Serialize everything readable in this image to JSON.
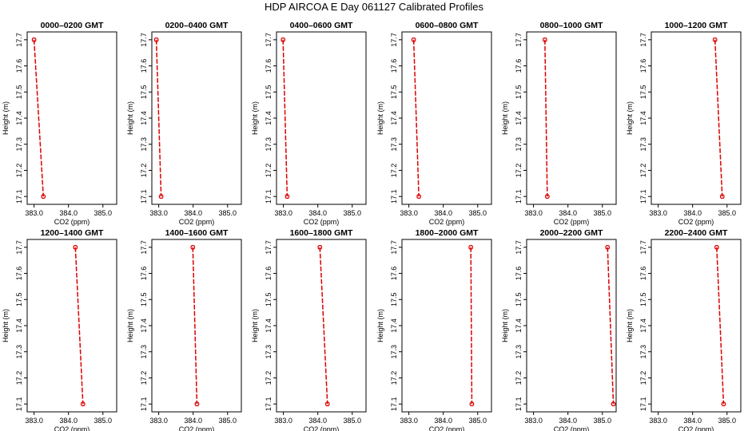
{
  "title": "HDP  AIRCOA E  Day 061127  Calibrated Profiles",
  "series_color": "#dd0000",
  "chart_data": [
    {
      "type": "line",
      "title": "0000–0200 GMT",
      "xlabel": "CO2 (ppm)",
      "ylabel": "Height (m)",
      "xlim": [
        382.8,
        385.4
      ],
      "ylim": [
        17.07,
        17.73
      ],
      "xticks": [
        "383.0",
        "384.0",
        "385.0"
      ],
      "yticks": [
        "17.1",
        "17.2",
        "17.3",
        "17.4",
        "17.5",
        "17.6",
        "17.7"
      ],
      "points": [
        {
          "x": 383.0,
          "y": 17.7
        },
        {
          "x": 383.27,
          "y": 17.1
        }
      ]
    },
    {
      "type": "line",
      "title": "0200–0400 GMT",
      "xlabel": "CO2 (ppm)",
      "ylabel": "Height (m)",
      "xlim": [
        382.8,
        385.4
      ],
      "ylim": [
        17.07,
        17.73
      ],
      "xticks": [
        "383.0",
        "384.0",
        "385.0"
      ],
      "yticks": [
        "17.1",
        "17.2",
        "17.3",
        "17.4",
        "17.5",
        "17.6",
        "17.7"
      ],
      "points": [
        {
          "x": 382.93,
          "y": 17.7
        },
        {
          "x": 383.07,
          "y": 17.1
        }
      ]
    },
    {
      "type": "line",
      "title": "0400–0600 GMT",
      "xlabel": "CO2 (ppm)",
      "ylabel": "Height (m)",
      "xlim": [
        382.8,
        385.4
      ],
      "ylim": [
        17.07,
        17.73
      ],
      "xticks": [
        "383.0",
        "384.0",
        "385.0"
      ],
      "yticks": [
        "17.1",
        "17.2",
        "17.3",
        "17.4",
        "17.5",
        "17.6",
        "17.7"
      ],
      "points": [
        {
          "x": 382.99,
          "y": 17.7
        },
        {
          "x": 383.11,
          "y": 17.1
        }
      ]
    },
    {
      "type": "line",
      "title": "0600–0800 GMT",
      "xlabel": "CO2 (ppm)",
      "ylabel": "Height (m)",
      "xlim": [
        382.8,
        385.4
      ],
      "ylim": [
        17.07,
        17.73
      ],
      "xticks": [
        "383.0",
        "384.0",
        "385.0"
      ],
      "yticks": [
        "17.1",
        "17.2",
        "17.3",
        "17.4",
        "17.5",
        "17.6",
        "17.7"
      ],
      "points": [
        {
          "x": 383.14,
          "y": 17.7
        },
        {
          "x": 383.29,
          "y": 17.1
        }
      ]
    },
    {
      "type": "line",
      "title": "0800–1000 GMT",
      "xlabel": "CO2 (ppm)",
      "ylabel": "Height (m)",
      "xlim": [
        382.8,
        385.4
      ],
      "ylim": [
        17.07,
        17.73
      ],
      "xticks": [
        "383.0",
        "384.0",
        "385.0"
      ],
      "yticks": [
        "17.1",
        "17.2",
        "17.3",
        "17.4",
        "17.5",
        "17.6",
        "17.7"
      ],
      "points": [
        {
          "x": 383.33,
          "y": 17.7
        },
        {
          "x": 383.4,
          "y": 17.1
        }
      ]
    },
    {
      "type": "line",
      "title": "1000–1200 GMT",
      "xlabel": "CO2 (ppm)",
      "ylabel": "Height (m)",
      "xlim": [
        382.8,
        385.4
      ],
      "ylim": [
        17.07,
        17.73
      ],
      "xticks": [
        "383.0",
        "384.0",
        "385.0"
      ],
      "yticks": [
        "17.1",
        "17.2",
        "17.3",
        "17.4",
        "17.5",
        "17.6",
        "17.7"
      ],
      "points": [
        {
          "x": 384.65,
          "y": 17.7
        },
        {
          "x": 384.86,
          "y": 17.1
        }
      ]
    },
    {
      "type": "line",
      "title": "1200–1400 GMT",
      "xlabel": "CO2 (ppm)",
      "ylabel": "Height (m)",
      "xlim": [
        382.8,
        385.4
      ],
      "ylim": [
        17.07,
        17.73
      ],
      "xticks": [
        "383.0",
        "384.0",
        "385.0"
      ],
      "yticks": [
        "17.1",
        "17.2",
        "17.3",
        "17.4",
        "17.5",
        "17.6",
        "17.7"
      ],
      "points": [
        {
          "x": 384.2,
          "y": 17.7
        },
        {
          "x": 384.42,
          "y": 17.1
        }
      ]
    },
    {
      "type": "line",
      "title": "1400–1600 GMT",
      "xlabel": "CO2 (ppm)",
      "ylabel": "Height (m)",
      "xlim": [
        382.8,
        385.4
      ],
      "ylim": [
        17.07,
        17.73
      ],
      "xticks": [
        "383.0",
        "384.0",
        "385.0"
      ],
      "yticks": [
        "17.1",
        "17.2",
        "17.3",
        "17.4",
        "17.5",
        "17.6",
        "17.7"
      ],
      "points": [
        {
          "x": 383.99,
          "y": 17.7
        },
        {
          "x": 384.11,
          "y": 17.1
        }
      ]
    },
    {
      "type": "line",
      "title": "1600–1800 GMT",
      "xlabel": "CO2 (ppm)",
      "ylabel": "Height (m)",
      "xlim": [
        382.8,
        385.4
      ],
      "ylim": [
        17.07,
        17.73
      ],
      "xticks": [
        "383.0",
        "384.0",
        "385.0"
      ],
      "yticks": [
        "17.1",
        "17.2",
        "17.3",
        "17.4",
        "17.5",
        "17.6",
        "17.7"
      ],
      "points": [
        {
          "x": 384.06,
          "y": 17.7
        },
        {
          "x": 384.28,
          "y": 17.1
        }
      ]
    },
    {
      "type": "line",
      "title": "1800–2000 GMT",
      "xlabel": "CO2 (ppm)",
      "ylabel": "Height (m)",
      "xlim": [
        382.8,
        385.4
      ],
      "ylim": [
        17.07,
        17.73
      ],
      "xticks": [
        "383.0",
        "384.0",
        "385.0"
      ],
      "yticks": [
        "17.1",
        "17.2",
        "17.3",
        "17.4",
        "17.5",
        "17.6",
        "17.7"
      ],
      "points": [
        {
          "x": 384.8,
          "y": 17.7
        },
        {
          "x": 384.83,
          "y": 17.1
        }
      ]
    },
    {
      "type": "line",
      "title": "2000–2200 GMT",
      "xlabel": "CO2 (ppm)",
      "ylabel": "Height (m)",
      "xlim": [
        382.8,
        385.4
      ],
      "ylim": [
        17.07,
        17.73
      ],
      "xticks": [
        "383.0",
        "384.0",
        "385.0"
      ],
      "yticks": [
        "17.1",
        "17.2",
        "17.3",
        "17.4",
        "17.5",
        "17.6",
        "17.7"
      ],
      "points": [
        {
          "x": 385.15,
          "y": 17.7
        },
        {
          "x": 385.32,
          "y": 17.1
        }
      ]
    },
    {
      "type": "line",
      "title": "2200–2400 GMT",
      "xlabel": "CO2 (ppm)",
      "ylabel": "Height (m)",
      "xlim": [
        382.8,
        385.4
      ],
      "ylim": [
        17.07,
        17.73
      ],
      "xticks": [
        "383.0",
        "384.0",
        "385.0"
      ],
      "yticks": [
        "17.1",
        "17.2",
        "17.3",
        "17.4",
        "17.5",
        "17.6",
        "17.7"
      ],
      "points": [
        {
          "x": 384.7,
          "y": 17.7
        },
        {
          "x": 384.9,
          "y": 17.1
        }
      ]
    }
  ]
}
